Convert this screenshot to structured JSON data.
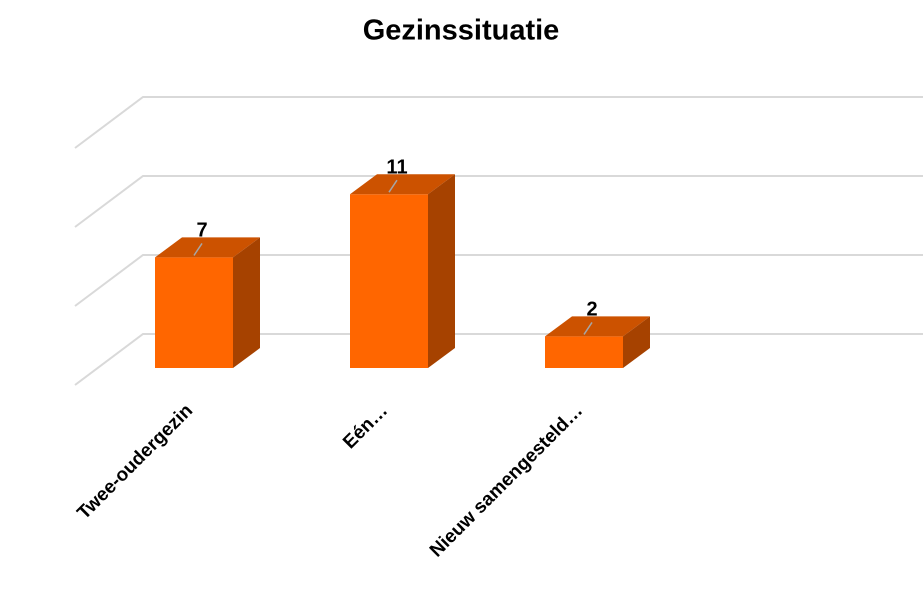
{
  "chart_data": {
    "type": "bar3d",
    "title": "Gezinssituatie",
    "categories": [
      "Twee-oudergezin",
      "Eén…",
      "Nieuw samengesteld…"
    ],
    "values": [
      7,
      11,
      2
    ],
    "color": "#ff6600",
    "ylim": [
      0,
      15
    ],
    "yticks": [
      0,
      5,
      10,
      15
    ],
    "grid": true
  }
}
